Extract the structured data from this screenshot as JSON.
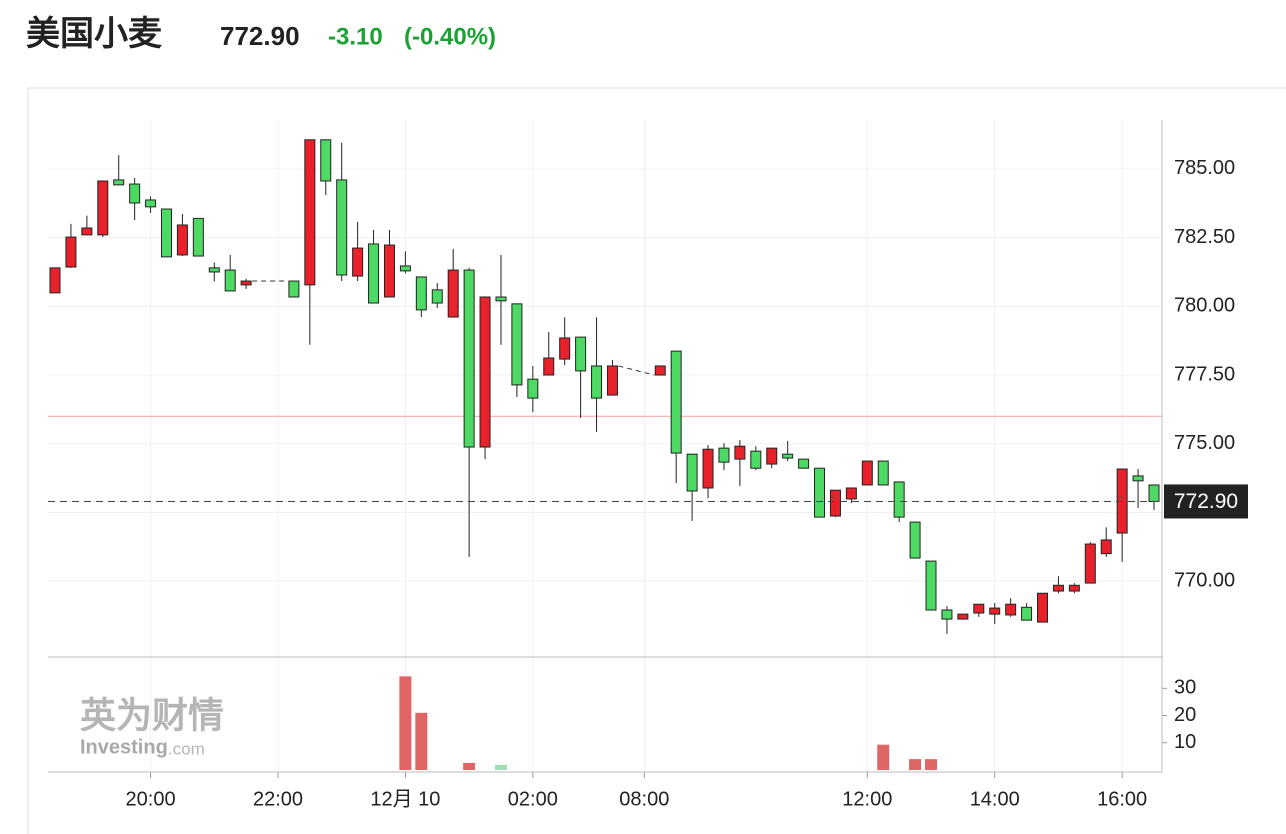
{
  "header": {
    "name": "美国小麦",
    "price": "772.90",
    "change": "-3.10",
    "change_pct": "(-0.40%)"
  },
  "watermark": {
    "cn": "英为财情",
    "en": "Investing",
    "dom": ".com"
  },
  "chart_data": {
    "type": "candlestick",
    "categories": [
      null,
      null,
      null,
      null,
      null,
      null,
      "20:00",
      null,
      null,
      null,
      null,
      null,
      null,
      null,
      "22:00",
      null,
      null,
      null,
      null,
      null,
      null,
      null,
      "12月 10",
      null,
      null,
      null,
      null,
      null,
      null,
      null,
      "02:00",
      null,
      null,
      null,
      null,
      null,
      null,
      "08:00",
      null,
      null,
      null,
      null,
      null,
      null,
      null,
      null,
      null,
      null,
      null,
      null,
      null,
      "12:00",
      null,
      null,
      null,
      null,
      null,
      null,
      null,
      "14:00",
      null,
      null,
      null,
      null,
      null,
      null,
      null,
      "16:00",
      null,
      null
    ],
    "open": [
      780.49,
      781.43,
      782.6,
      782.6,
      784.6,
      784.45,
      783.87,
      783.54,
      781.87,
      783.2,
      781.4,
      781.32,
      780.78,
      null,
      null,
      780.92,
      780.78,
      786.06,
      784.6,
      781.1,
      782.27,
      780.34,
      781.47,
      781.07,
      780.6,
      779.61,
      781.32,
      774.88,
      780.34,
      780.09,
      777.35,
      777.5,
      778.08,
      778.88,
      777.83,
      776.77,
      null,
      null,
      777.5,
      778.37,
      774.62,
      773.39,
      774.84,
      774.44,
      774.73,
      774.26,
      774.62,
      774.44,
      774.11,
      772.37,
      772.99,
      773.5,
      774.37,
      773.61,
      772.15,
      770.73,
      768.95,
      768.62,
      768.84,
      768.8,
      768.77,
      769.05,
      768.51,
      769.64,
      769.64,
      769.93,
      771.0,
      771.75,
      773.83,
      773.5
    ],
    "high": [
      781.4,
      783.0,
      783.3,
      784.56,
      785.5,
      784.67,
      784.0,
      783.54,
      783.36,
      783.2,
      781.6,
      781.87,
      781.0,
      null,
      null,
      780.92,
      786.06,
      786.06,
      785.95,
      783.07,
      782.78,
      782.78,
      782.0,
      781.07,
      780.85,
      782.09,
      781.4,
      780.34,
      781.87,
      780.09,
      777.83,
      779.07,
      779.6,
      778.88,
      779.6,
      778.05,
      null,
      null,
      777.83,
      778.37,
      774.62,
      774.95,
      775.02,
      775.13,
      774.91,
      774.84,
      775.1,
      774.44,
      774.11,
      773.31,
      773.39,
      774.37,
      774.37,
      773.61,
      772.15,
      770.73,
      769.09,
      768.8,
      769.16,
      769.2,
      769.38,
      769.2,
      769.56,
      770.18,
      769.93,
      771.42,
      771.96,
      774.08,
      774.08,
      773.5
    ],
    "low": [
      780.49,
      781.4,
      782.6,
      782.52,
      784.4,
      783.14,
      783.4,
      781.8,
      781.83,
      781.83,
      780.9,
      780.56,
      780.63,
      null,
      null,
      780.34,
      778.6,
      784.05,
      780.92,
      780.92,
      780.12,
      780.34,
      781.2,
      779.61,
      779.94,
      779.61,
      770.88,
      774.44,
      778.6,
      776.7,
      776.15,
      777.5,
      777.86,
      775.94,
      775.43,
      776.77,
      null,
      null,
      777.5,
      773.57,
      772.19,
      773.02,
      774.04,
      773.46,
      774.04,
      774.11,
      774.37,
      774.11,
      772.33,
      772.33,
      772.84,
      773.5,
      773.5,
      772.15,
      770.84,
      768.95,
      768.08,
      768.62,
      768.7,
      768.44,
      768.7,
      768.58,
      768.51,
      769.56,
      769.56,
      769.93,
      770.88,
      770.7,
      772.66,
      772.59
    ],
    "close": [
      781.4,
      782.52,
      782.85,
      784.56,
      784.42,
      783.76,
      783.62,
      781.8,
      782.96,
      781.83,
      781.25,
      780.56,
      780.92,
      null,
      null,
      780.34,
      786.06,
      784.56,
      781.14,
      782.12,
      780.12,
      782.23,
      781.29,
      779.87,
      780.12,
      781.32,
      774.88,
      780.34,
      780.2,
      777.14,
      776.66,
      778.12,
      778.85,
      777.65,
      776.66,
      777.83,
      null,
      null,
      777.83,
      774.66,
      773.28,
      774.8,
      774.33,
      774.91,
      774.11,
      774.84,
      774.48,
      774.11,
      772.33,
      773.31,
      773.39,
      774.37,
      773.5,
      772.33,
      770.84,
      768.95,
      768.62,
      768.8,
      769.16,
      769.02,
      769.16,
      768.58,
      769.56,
      769.85,
      769.85,
      771.35,
      771.5,
      774.08,
      773.65,
      772.9
    ],
    "up_color": "#e8212b",
    "down_color": "#4cd964",
    "ylim": [
      767.24,
      786.78
    ],
    "yticks": [
      {
        "value": 770,
        "label": "770.00"
      },
      {
        "value": 772.5,
        "label": "772.50"
      },
      {
        "value": 775,
        "label": "775.00"
      },
      {
        "value": 777.5,
        "label": "777.50"
      },
      {
        "value": 780,
        "label": "780.00"
      },
      {
        "value": 782.5,
        "label": "782.50"
      },
      {
        "value": 785,
        "label": "785.00"
      }
    ],
    "prev_close": 776.0,
    "last": {
      "value": 772.9,
      "label": "772.90"
    },
    "grid": true,
    "volume": {
      "values": [
        null,
        null,
        null,
        null,
        null,
        null,
        null,
        null,
        null,
        null,
        null,
        null,
        null,
        null,
        null,
        null,
        null,
        null,
        null,
        null,
        null,
        null,
        34.4,
        21,
        null,
        null,
        2.6,
        null,
        1.9,
        null,
        null,
        null,
        null,
        null,
        null,
        null,
        null,
        null,
        null,
        null,
        null,
        null,
        null,
        null,
        null,
        null,
        null,
        null,
        null,
        null,
        null,
        null,
        9.3,
        null,
        4,
        4,
        null,
        null,
        null,
        null,
        null,
        null,
        null,
        null,
        null,
        null,
        null,
        null,
        null,
        null
      ],
      "colors": [
        null,
        null,
        null,
        null,
        null,
        null,
        null,
        null,
        null,
        null,
        null,
        null,
        null,
        null,
        null,
        null,
        null,
        null,
        null,
        null,
        null,
        null,
        "#e06666",
        "#e06666",
        null,
        null,
        "#e06666",
        null,
        "#9fdcb2",
        null,
        null,
        null,
        null,
        null,
        null,
        null,
        null,
        null,
        null,
        null,
        null,
        null,
        null,
        null,
        null,
        null,
        null,
        null,
        null,
        null,
        null,
        null,
        "#e06666",
        null,
        "#e06666",
        "#e06666",
        null,
        null,
        null,
        null,
        null,
        null,
        null,
        null,
        null,
        null,
        null,
        null,
        null,
        null
      ],
      "ylim": [
        0,
        41.5
      ],
      "yticks": [
        10,
        20,
        30
      ]
    }
  }
}
